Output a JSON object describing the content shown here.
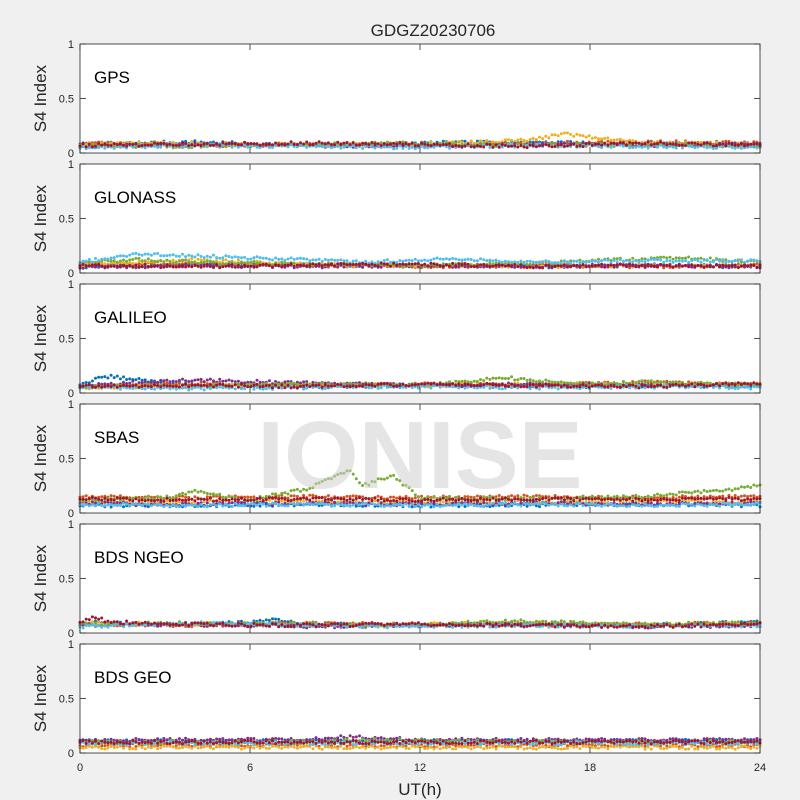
{
  "title": "GDGZ20230706",
  "watermark": "IONISE",
  "xlabel": "UT(h)",
  "ylabel": "S4 Index",
  "x_ticks": [
    "0",
    "6",
    "12",
    "18",
    "24"
  ],
  "y_ticks": [
    "0",
    "0.5",
    "1"
  ],
  "colors": [
    "#0072BD",
    "#D95319",
    "#EDB120",
    "#7E2F8E",
    "#77AC30",
    "#4DBEEE",
    "#A2142F"
  ],
  "chart_data": [
    {
      "type": "scatter",
      "panel": "GPS",
      "xlim": [
        0,
        24
      ],
      "ylim": [
        0,
        1
      ],
      "grid": false,
      "series": [
        {
          "color": "#0072BD",
          "x": [
            0,
            4,
            8,
            12,
            16,
            20,
            24
          ],
          "y": [
            0.08,
            0.1,
            0.07,
            0.09,
            0.1,
            0.08,
            0.07
          ]
        },
        {
          "color": "#D95319",
          "x": [
            0,
            4,
            8,
            12,
            16,
            20,
            24
          ],
          "y": [
            0.09,
            0.07,
            0.08,
            0.07,
            0.09,
            0.1,
            0.09
          ]
        },
        {
          "color": "#EDB120",
          "x": [
            0,
            4,
            8,
            12,
            16,
            17,
            20,
            24
          ],
          "y": [
            0.08,
            0.09,
            0.07,
            0.08,
            0.12,
            0.18,
            0.09,
            0.08
          ]
        },
        {
          "color": "#7E2F8E",
          "x": [
            0,
            4,
            8,
            12,
            16,
            20,
            24
          ],
          "y": [
            0.06,
            0.08,
            0.07,
            0.06,
            0.08,
            0.07,
            0.08
          ]
        },
        {
          "color": "#77AC30",
          "x": [
            0,
            4,
            8,
            12,
            16,
            20,
            24
          ],
          "y": [
            0.07,
            0.06,
            0.08,
            0.09,
            0.07,
            0.08,
            0.06
          ]
        },
        {
          "color": "#4DBEEE",
          "x": [
            0,
            4,
            8,
            12,
            16,
            20,
            24
          ],
          "y": [
            0.05,
            0.07,
            0.06,
            0.05,
            0.07,
            0.06,
            0.05
          ]
        },
        {
          "color": "#A2142F",
          "x": [
            0,
            4,
            8,
            12,
            16,
            20,
            24
          ],
          "y": [
            0.07,
            0.08,
            0.09,
            0.08,
            0.06,
            0.09,
            0.07
          ]
        }
      ]
    },
    {
      "type": "scatter",
      "panel": "GLONASS",
      "xlim": [
        0,
        24
      ],
      "ylim": [
        0,
        1
      ],
      "grid": false,
      "series": [
        {
          "color": "#0072BD",
          "x": [
            0,
            4,
            8,
            12,
            16,
            20,
            24
          ],
          "y": [
            0.06,
            0.08,
            0.07,
            0.07,
            0.06,
            0.07,
            0.06
          ]
        },
        {
          "color": "#D95319",
          "x": [
            0,
            4,
            8,
            12,
            16,
            20,
            24
          ],
          "y": [
            0.08,
            0.09,
            0.07,
            0.06,
            0.07,
            0.06,
            0.07
          ]
        },
        {
          "color": "#EDB120",
          "x": [
            0,
            4,
            8,
            12,
            16,
            20,
            24
          ],
          "y": [
            0.07,
            0.12,
            0.08,
            0.07,
            0.06,
            0.07,
            0.06
          ]
        },
        {
          "color": "#7E2F8E",
          "x": [
            0,
            4,
            8,
            12,
            16,
            20,
            24
          ],
          "y": [
            0.05,
            0.07,
            0.06,
            0.07,
            0.06,
            0.07,
            0.06
          ]
        },
        {
          "color": "#77AC30",
          "x": [
            0,
            2,
            4,
            8,
            12,
            16,
            21,
            24
          ],
          "y": [
            0.1,
            0.12,
            0.1,
            0.08,
            0.07,
            0.09,
            0.14,
            0.1
          ]
        },
        {
          "color": "#4DBEEE",
          "x": [
            0,
            2,
            4,
            7,
            10,
            13,
            16,
            20,
            24
          ],
          "y": [
            0.1,
            0.17,
            0.16,
            0.13,
            0.1,
            0.13,
            0.1,
            0.11,
            0.11
          ]
        },
        {
          "color": "#A2142F",
          "x": [
            0,
            4,
            8,
            12,
            16,
            20,
            24
          ],
          "y": [
            0.07,
            0.06,
            0.07,
            0.08,
            0.06,
            0.07,
            0.06
          ]
        }
      ]
    },
    {
      "type": "scatter",
      "panel": "GALILEO",
      "xlim": [
        0,
        24
      ],
      "ylim": [
        0,
        1
      ],
      "grid": false,
      "series": [
        {
          "color": "#0072BD",
          "x": [
            0,
            0.5,
            1,
            4,
            8,
            12,
            16,
            20,
            24
          ],
          "y": [
            0.08,
            0.12,
            0.15,
            0.07,
            0.06,
            0.07,
            0.06,
            0.07,
            0.06
          ]
        },
        {
          "color": "#D95319",
          "x": [
            0,
            4,
            8,
            12,
            16,
            20,
            24
          ],
          "y": [
            0.06,
            0.09,
            0.07,
            0.08,
            0.07,
            0.1,
            0.07
          ]
        },
        {
          "color": "#EDB120",
          "x": [
            0,
            4,
            8,
            12,
            16,
            20,
            24
          ],
          "y": [
            0.05,
            0.06,
            0.08,
            0.07,
            0.08,
            0.07,
            0.08
          ]
        },
        {
          "color": "#7E2F8E",
          "x": [
            0,
            4,
            8,
            12,
            16,
            20,
            24
          ],
          "y": [
            0.07,
            0.12,
            0.09,
            0.07,
            0.08,
            0.07,
            0.08
          ]
        },
        {
          "color": "#77AC30",
          "x": [
            0,
            4,
            8,
            12,
            15,
            18,
            20,
            24
          ],
          "y": [
            0.06,
            0.07,
            0.08,
            0.07,
            0.14,
            0.08,
            0.1,
            0.07
          ]
        },
        {
          "color": "#4DBEEE",
          "x": [
            0,
            4,
            8,
            12,
            16,
            20,
            24
          ],
          "y": [
            0.05,
            0.04,
            0.05,
            0.06,
            0.05,
            0.06,
            0.05
          ]
        },
        {
          "color": "#A2142F",
          "x": [
            0,
            4,
            8,
            12,
            16,
            20,
            24
          ],
          "y": [
            0.06,
            0.07,
            0.06,
            0.08,
            0.07,
            0.06,
            0.09
          ]
        }
      ]
    },
    {
      "type": "scatter",
      "panel": "SBAS",
      "xlim": [
        0,
        24
      ],
      "ylim": [
        0,
        1
      ],
      "grid": false,
      "series": [
        {
          "color": "#0072BD",
          "x": [
            0,
            4,
            8,
            12,
            16,
            20,
            24
          ],
          "y": [
            0.07,
            0.07,
            0.08,
            0.07,
            0.07,
            0.08,
            0.07
          ]
        },
        {
          "color": "#D95319",
          "x": [
            0,
            4,
            8,
            12,
            16,
            20,
            24
          ],
          "y": [
            0.15,
            0.14,
            0.15,
            0.14,
            0.15,
            0.14,
            0.15
          ]
        },
        {
          "color": "#EDB120",
          "x": [
            0,
            4,
            8,
            12,
            16,
            20,
            24
          ],
          "y": [
            0.1,
            0.1,
            0.11,
            0.1,
            0.1,
            0.11,
            0.1
          ]
        },
        {
          "color": "#7E2F8E",
          "x": [
            0,
            4,
            8,
            12,
            16,
            20,
            24
          ],
          "y": [
            0.09,
            0.08,
            0.09,
            0.08,
            0.09,
            0.08,
            0.09
          ]
        },
        {
          "color": "#77AC30",
          "x": [
            0,
            3,
            4,
            6,
            8,
            9.5,
            10,
            11,
            12,
            16,
            20,
            23,
            24
          ],
          "y": [
            0.12,
            0.14,
            0.2,
            0.12,
            0.22,
            0.4,
            0.25,
            0.35,
            0.14,
            0.13,
            0.15,
            0.22,
            0.26
          ]
        },
        {
          "color": "#4DBEEE",
          "x": [
            0,
            4,
            8,
            12,
            16,
            20,
            24
          ],
          "y": [
            0.08,
            0.07,
            0.08,
            0.07,
            0.08,
            0.07,
            0.08
          ]
        },
        {
          "color": "#A2142F",
          "x": [
            0,
            4,
            8,
            12,
            16,
            20,
            24
          ],
          "y": [
            0.13,
            0.12,
            0.13,
            0.12,
            0.13,
            0.12,
            0.13
          ]
        }
      ]
    },
    {
      "type": "scatter",
      "panel": "BDS NGEO",
      "xlim": [
        0,
        24
      ],
      "ylim": [
        0,
        1
      ],
      "grid": false,
      "series": [
        {
          "color": "#0072BD",
          "x": [
            0,
            4,
            7,
            8,
            12,
            16,
            20,
            24
          ],
          "y": [
            0.1,
            0.07,
            0.12,
            0.08,
            0.07,
            0.08,
            0.07,
            0.1
          ]
        },
        {
          "color": "#D95319",
          "x": [
            0,
            4,
            8,
            12,
            16,
            20,
            24
          ],
          "y": [
            0.08,
            0.07,
            0.09,
            0.08,
            0.07,
            0.08,
            0.09
          ]
        },
        {
          "color": "#EDB120",
          "x": [
            0,
            4,
            8,
            12,
            16,
            20,
            24
          ],
          "y": [
            0.09,
            0.08,
            0.07,
            0.08,
            0.09,
            0.07,
            0.08
          ]
        },
        {
          "color": "#7E2F8E",
          "x": [
            0,
            4,
            8,
            12,
            16,
            20,
            24
          ],
          "y": [
            0.07,
            0.08,
            0.06,
            0.07,
            0.08,
            0.06,
            0.07
          ]
        },
        {
          "color": "#77AC30",
          "x": [
            0,
            4,
            8,
            12,
            15,
            20,
            24
          ],
          "y": [
            0.08,
            0.09,
            0.08,
            0.07,
            0.11,
            0.08,
            0.09
          ]
        },
        {
          "color": "#4DBEEE",
          "x": [
            0,
            4,
            8,
            12,
            16,
            20,
            24
          ],
          "y": [
            0.06,
            0.09,
            0.07,
            0.06,
            0.07,
            0.06,
            0.07
          ]
        },
        {
          "color": "#A2142F",
          "x": [
            0,
            0.5,
            1,
            4,
            8,
            12,
            16,
            20,
            24
          ],
          "y": [
            0.1,
            0.15,
            0.1,
            0.08,
            0.07,
            0.08,
            0.07,
            0.06,
            0.08
          ]
        }
      ]
    },
    {
      "type": "scatter",
      "panel": "BDS GEO",
      "xlim": [
        0,
        24
      ],
      "ylim": [
        0,
        1
      ],
      "grid": false,
      "series": [
        {
          "color": "#0072BD",
          "x": [
            0,
            4,
            8,
            12,
            16,
            20,
            24
          ],
          "y": [
            0.11,
            0.11,
            0.11,
            0.11,
            0.11,
            0.11,
            0.11
          ]
        },
        {
          "color": "#D95319",
          "x": [
            0,
            4,
            8,
            12,
            16,
            20,
            24
          ],
          "y": [
            0.07,
            0.07,
            0.07,
            0.07,
            0.07,
            0.07,
            0.07
          ]
        },
        {
          "color": "#EDB120",
          "x": [
            0,
            4,
            8,
            12,
            16,
            20,
            24
          ],
          "y": [
            0.05,
            0.05,
            0.05,
            0.05,
            0.05,
            0.05,
            0.05
          ]
        },
        {
          "color": "#7E2F8E",
          "x": [
            0,
            4,
            8,
            9.5,
            12,
            16,
            20,
            24
          ],
          "y": [
            0.12,
            0.12,
            0.12,
            0.15,
            0.12,
            0.12,
            0.12,
            0.12
          ]
        },
        {
          "color": "#77AC30",
          "x": [
            0,
            4,
            8,
            10,
            13,
            16,
            20,
            24
          ],
          "y": [
            0.1,
            0.1,
            0.1,
            0.12,
            0.11,
            0.1,
            0.1,
            0.1
          ]
        },
        {
          "color": "#4DBEEE",
          "x": [
            0,
            4,
            8,
            12,
            16,
            20,
            24
          ],
          "y": [
            0.09,
            0.09,
            0.09,
            0.09,
            0.09,
            0.09,
            0.09
          ]
        },
        {
          "color": "#A2142F",
          "x": [
            0,
            4,
            8,
            12,
            16,
            20,
            24
          ],
          "y": [
            0.1,
            0.1,
            0.1,
            0.1,
            0.1,
            0.1,
            0.1
          ]
        }
      ]
    }
  ]
}
